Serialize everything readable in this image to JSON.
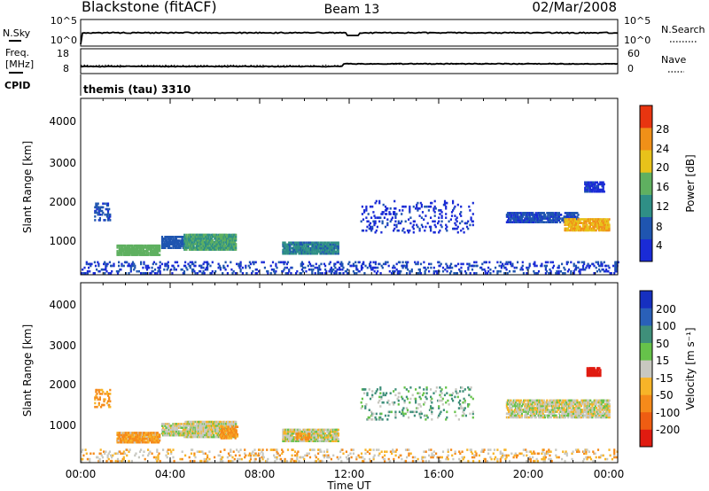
{
  "header": {
    "station": "Blackstone (fitACF)",
    "beam": "Beam 13",
    "date": "02/Mar/2008"
  },
  "strips": {
    "nsky_label": "N.Sky",
    "nsearch_label": "N.Search",
    "nsky_ticks": [
      "10^5",
      "10^0"
    ],
    "nsearch_ticks": [
      "10^5",
      "10^0"
    ],
    "freq_label_line1": "Freq.",
    "freq_label_line2": "[MHz]",
    "freq_ticks": [
      "18",
      "8"
    ],
    "nave_label": "Nave",
    "nave_ticks": [
      "60",
      "0"
    ],
    "cpid_label": "CPID",
    "cpid_value": "themis (tau) 3310"
  },
  "axes": {
    "ylabel": "Slant Range [km]",
    "xlabel": "Time UT",
    "y_ticks": [
      "1000",
      "2000",
      "3000",
      "4000"
    ],
    "x_ticks": [
      "00:00",
      "04:00",
      "08:00",
      "12:00",
      "16:00",
      "20:00",
      "00:00"
    ]
  },
  "colorbars": {
    "power": {
      "label": "Power [dB]",
      "tick_labels": [
        "4",
        "8",
        "12",
        "16",
        "20",
        "24",
        "28"
      ],
      "colors": [
        "#1a2bd6",
        "#1f55b0",
        "#2f8f86",
        "#5fb060",
        "#e8c21a",
        "#f09018",
        "#e83510"
      ]
    },
    "velocity": {
      "label": "Velocity [m s⁻¹]",
      "tick_labels": [
        "-200",
        "-100",
        "-50",
        "-15",
        "15",
        "50",
        "100",
        "200"
      ],
      "colors": [
        "#e01b10",
        "#ef5d12",
        "#f58a1a",
        "#f7b428",
        "#c8c8c0",
        "#66c24a",
        "#3f8f7a",
        "#2a60b8",
        "#1630c0"
      ]
    }
  },
  "chart_data": [
    {
      "type": "heatmap",
      "title": "Power",
      "xlabel": "Time UT",
      "ylabel": "Slant Range [km]",
      "xlim": [
        0,
        24
      ],
      "ylim": [
        180,
        4500
      ],
      "colorbar": {
        "label": "Power [dB]",
        "range": [
          0,
          32
        ]
      },
      "regions": [
        {
          "t0": 0.6,
          "t1": 1.3,
          "r0": 1500,
          "r1": 1950,
          "value": 7,
          "density": 0.3
        },
        {
          "t0": 1.6,
          "t1": 3.5,
          "r0": 650,
          "r1": 920,
          "value": 16,
          "density": 0.9
        },
        {
          "t0": 3.6,
          "t1": 4.6,
          "r0": 820,
          "r1": 1130,
          "value": 8,
          "density": 0.75
        },
        {
          "t0": 4.6,
          "t1": 6.9,
          "r0": 780,
          "r1": 1180,
          "value": 14,
          "density": 0.9
        },
        {
          "t0": 9.0,
          "t1": 11.5,
          "r0": 680,
          "r1": 960,
          "value": 11,
          "density": 0.85
        },
        {
          "t0": 12.5,
          "t1": 17.5,
          "r0": 1200,
          "r1": 2000,
          "value": 5,
          "density": 0.12
        },
        {
          "t0": 19.0,
          "t1": 22.2,
          "r0": 1450,
          "r1": 1700,
          "value": 7,
          "density": 0.75
        },
        {
          "t0": 21.6,
          "t1": 23.6,
          "r0": 1250,
          "r1": 1550,
          "value": 22,
          "density": 0.8
        },
        {
          "t0": 22.5,
          "t1": 23.4,
          "r0": 2200,
          "r1": 2450,
          "value": 5,
          "density": 0.7
        },
        {
          "t0": 0.0,
          "t1": 24.0,
          "r0": 200,
          "r1": 500,
          "value": 6,
          "density": 0.18
        }
      ]
    },
    {
      "type": "heatmap",
      "title": "Velocity",
      "xlabel": "Time UT",
      "ylabel": "Slant Range [km]",
      "xlim": [
        0,
        24
      ],
      "ylim": [
        180,
        4500
      ],
      "colorbar": {
        "label": "Velocity [m s⁻¹]",
        "range": [
          -250,
          250
        ]
      },
      "regions": [
        {
          "t0": 0.6,
          "t1": 1.3,
          "r0": 1500,
          "r1": 1950,
          "value": -40,
          "density": 0.25
        },
        {
          "t0": 1.6,
          "t1": 3.5,
          "r0": 650,
          "r1": 920,
          "value": -40,
          "density": 0.9
        },
        {
          "t0": 3.6,
          "t1": 4.6,
          "r0": 820,
          "r1": 1130,
          "value": 0,
          "density": 0.75
        },
        {
          "t0": 4.6,
          "t1": 6.9,
          "r0": 780,
          "r1": 1180,
          "value": 0,
          "density": 0.9
        },
        {
          "t0": 6.2,
          "t1": 7.0,
          "r0": 750,
          "r1": 1050,
          "value": -45,
          "density": 0.7
        },
        {
          "t0": 9.0,
          "t1": 11.5,
          "r0": 680,
          "r1": 960,
          "value": 0,
          "density": 0.85
        },
        {
          "t0": 9.6,
          "t1": 10.2,
          "r0": 720,
          "r1": 900,
          "value": -45,
          "density": 0.6
        },
        {
          "t0": 12.5,
          "t1": 17.5,
          "r0": 1200,
          "r1": 2000,
          "value": 30,
          "density": 0.12
        },
        {
          "t0": 19.0,
          "t1": 23.6,
          "r0": 1250,
          "r1": 1700,
          "value": 0,
          "density": 0.75
        },
        {
          "t0": 22.6,
          "t1": 23.2,
          "r0": 2250,
          "r1": 2450,
          "value": -180,
          "density": 0.9
        },
        {
          "t0": 0.0,
          "t1": 24.0,
          "r0": 200,
          "r1": 500,
          "value": -20,
          "density": 0.15
        }
      ]
    }
  ]
}
